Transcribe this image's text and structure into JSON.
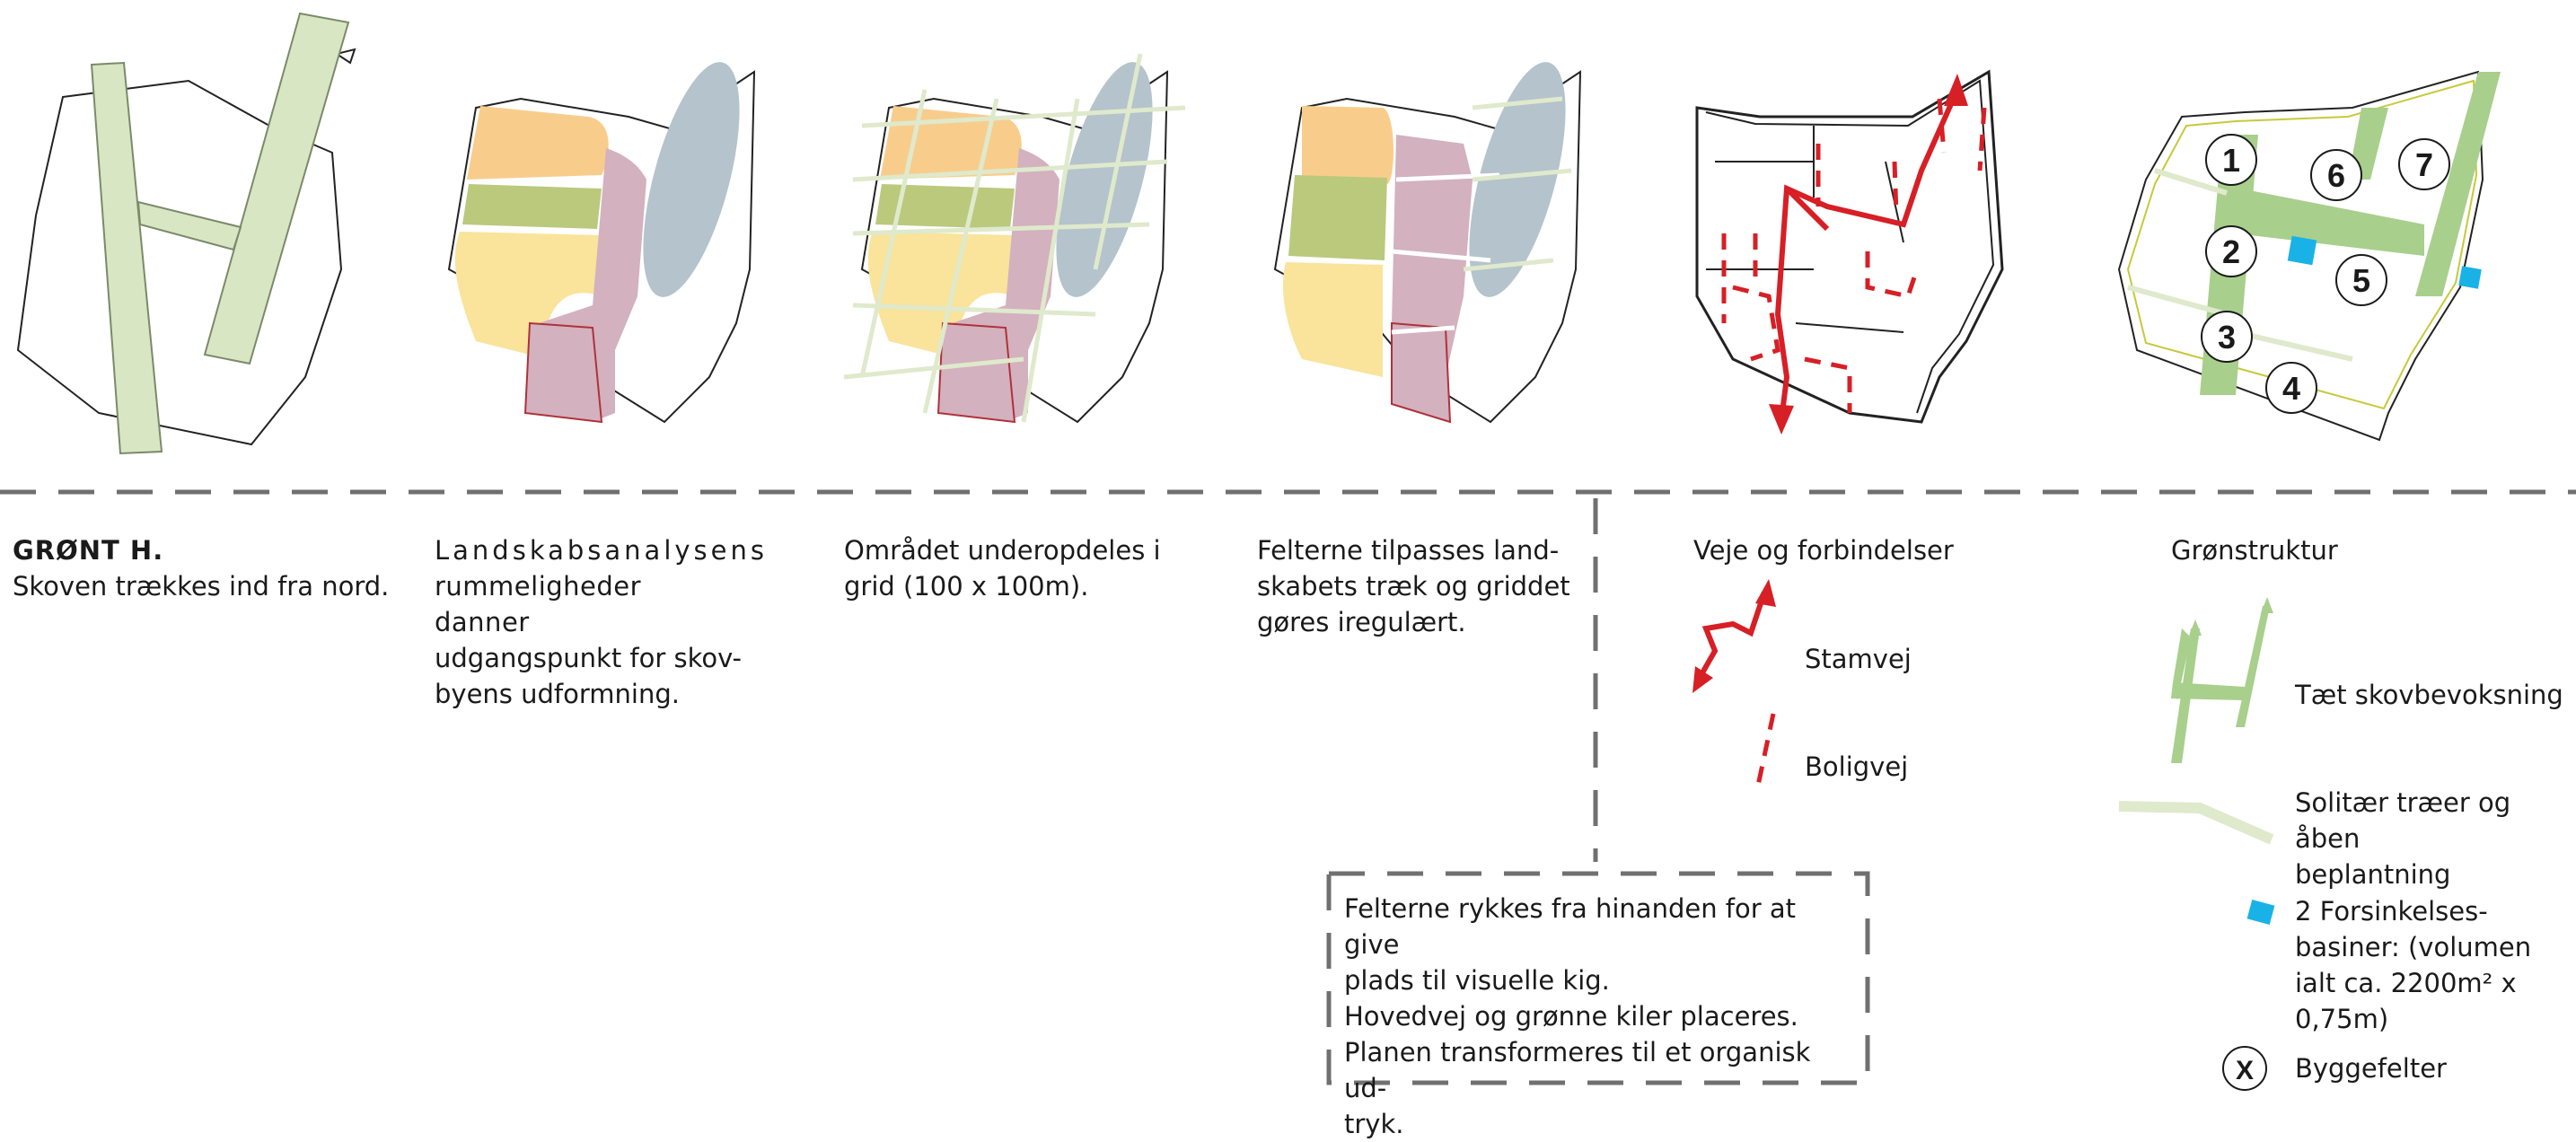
{
  "colors": {
    "orange": "#f8cd8c",
    "olive": "#bac97c",
    "yellow": "#fae39a",
    "mauve": "#d3b1bf",
    "bluegrey": "#b4c3cc",
    "forest": "#d8e6c4",
    "forest_stroke": "#7a8a6a",
    "road": "#d71f26",
    "green": "#a8cf8c",
    "light_green": "#dfe9cc",
    "basin": "#19b2e6",
    "dash": "#707070"
  },
  "steps": [
    {
      "title": "GRØNT H.",
      "text": "Skoven trækkes ind fra nord."
    },
    {
      "lines": [
        "Landskabsanalysens",
        "rummeligheder danner",
        "udgangspunkt for skov-",
        "byens udformning."
      ]
    },
    {
      "lines": [
        "Området underopdeles i",
        "grid (100 x 100m)."
      ]
    },
    {
      "lines": [
        "Felterne tilpasses land-",
        "skabets træk og griddet",
        "gøres iregulært."
      ]
    },
    {
      "title": "Veje og forbindelser"
    },
    {
      "title": "Grønstruktur"
    }
  ],
  "roads_legend": {
    "main": "Stamvej",
    "local": "Boligvej"
  },
  "green_legend": {
    "dense": "Tæt skovbevoksning",
    "solitary": [
      "Solitær træer og åben",
      "beplantning"
    ],
    "basin": [
      "2 Forsinkelses-",
      "basiner: (volumen",
      "ialt ca.  2200m² x",
      "0,75m)"
    ],
    "fields_symbol": "X",
    "fields": "Byggefelter"
  },
  "box_note": [
    "Felterne rykkes fra hinanden for at give",
    "plads til visuelle kig.",
    "Hovedvej og grønne kiler placeres.",
    "Planen transformeres til et organisk ud-",
    "tryk."
  ],
  "field_numbers": [
    "1",
    "2",
    "3",
    "4",
    "5",
    "6",
    "7"
  ]
}
